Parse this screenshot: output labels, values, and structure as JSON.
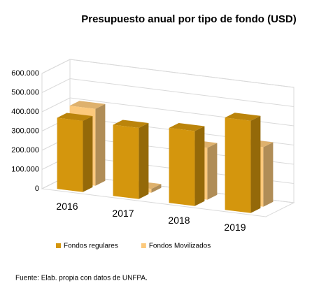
{
  "chart_data": {
    "type": "bar3d",
    "title": "Presupuesto anual por tipo de fondo (USD)",
    "categories": [
      "2016",
      "2017",
      "2018",
      "2019"
    ],
    "series": [
      {
        "name": "Fondos regulares",
        "color": "#d4960d",
        "values": [
          370000,
          370000,
          390000,
          480000
        ]
      },
      {
        "name": "Fondos Movilizados",
        "color": "#fcc97c",
        "values": [
          400000,
          20000,
          270000,
          310000
        ]
      }
    ],
    "ylim": [
      0,
      600000
    ],
    "yticks": [
      0,
      {
        "value": 100000,
        "label": "100.000"
      },
      {
        "value": 200000,
        "label": "200.000"
      },
      {
        "value": 300000,
        "label": "300.000"
      },
      {
        "value": 400000,
        "label": "400.000"
      },
      {
        "value": 500000,
        "label": "500.000"
      },
      {
        "value": 600000,
        "label": "600.000"
      }
    ],
    "grid": true,
    "legend": "bottom",
    "source": "Fuente: Elab. propia con datos de UNFPA."
  }
}
